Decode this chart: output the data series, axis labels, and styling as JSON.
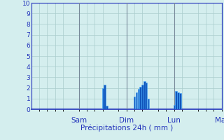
{
  "title": "",
  "xlabel": "Précipitations 24h ( mm )",
  "ylabel": "",
  "ylim": [
    0,
    10
  ],
  "yticks": [
    0,
    1,
    2,
    3,
    4,
    5,
    6,
    7,
    8,
    9,
    10
  ],
  "background_color": "#d4eeee",
  "bar_color": "#1155bb",
  "bar_edge_color": "#44aaff",
  "grid_color": "#aacccc",
  "day_sep_color": "#778899",
  "axis_color": "#2233bb",
  "text_color": "#2233bb",
  "day_labels": [
    "Sam",
    "Dim",
    "Lun",
    "Mar"
  ],
  "day_boundary_hours": [
    24,
    48,
    72,
    96
  ],
  "day_label_hours": [
    24,
    48,
    72,
    96
  ],
  "total_hours": 96,
  "bar_data": [
    {
      "hour": 36,
      "value": 2.0
    },
    {
      "hour": 37,
      "value": 2.3
    },
    {
      "hour": 38,
      "value": 0.3
    },
    {
      "hour": 52,
      "value": 1.2
    },
    {
      "hour": 53,
      "value": 1.6
    },
    {
      "hour": 54,
      "value": 1.9
    },
    {
      "hour": 55,
      "value": 2.1
    },
    {
      "hour": 56,
      "value": 2.3
    },
    {
      "hour": 57,
      "value": 2.6
    },
    {
      "hour": 58,
      "value": 2.5
    },
    {
      "hour": 59,
      "value": 1.0
    },
    {
      "hour": 72,
      "value": 0.4
    },
    {
      "hour": 73,
      "value": 1.7
    },
    {
      "hour": 74,
      "value": 1.6
    },
    {
      "hour": 75,
      "value": 1.5
    }
  ]
}
